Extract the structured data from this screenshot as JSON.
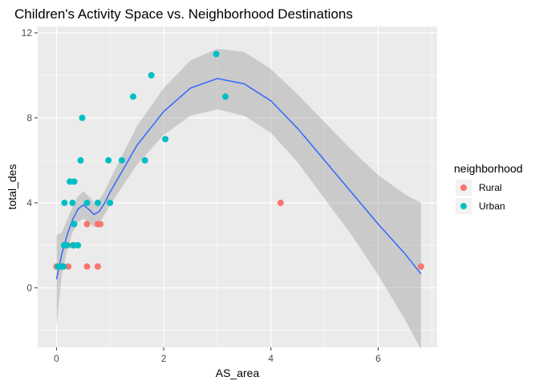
{
  "chart_data": {
    "type": "scatter",
    "title": "Children's Activity Space vs. Neighborhood Destinations",
    "xlabel": "AS_area",
    "ylabel": "total_des",
    "xlim": [
      -0.35,
      7.1
    ],
    "ylim": [
      -2.8,
      12.3
    ],
    "x_ticks": [
      0,
      2,
      4,
      6
    ],
    "y_ticks": [
      0,
      4,
      8,
      12
    ],
    "grid": true,
    "legend": {
      "title": "neighborhood",
      "placement": "right",
      "entries": [
        {
          "label": "Rural",
          "color": "#F8766D"
        },
        {
          "label": "Urban",
          "color": "#00BFC4"
        }
      ]
    },
    "series": [
      {
        "name": "Rural",
        "color": "#F8766D",
        "points": [
          [
            0.0,
            1
          ],
          [
            0.08,
            1
          ],
          [
            0.22,
            1
          ],
          [
            0.57,
            1
          ],
          [
            0.77,
            1
          ],
          [
            0.3,
            2
          ],
          [
            0.57,
            3
          ],
          [
            0.77,
            3
          ],
          [
            0.82,
            3
          ],
          [
            4.18,
            4
          ],
          [
            6.8,
            1
          ]
        ]
      },
      {
        "name": "Urban",
        "color": "#00BFC4",
        "points": [
          [
            0.03,
            1
          ],
          [
            0.1,
            1
          ],
          [
            0.13,
            1
          ],
          [
            0.14,
            2
          ],
          [
            0.2,
            2
          ],
          [
            0.32,
            2
          ],
          [
            0.4,
            2
          ],
          [
            0.33,
            3
          ],
          [
            0.15,
            4
          ],
          [
            0.3,
            4
          ],
          [
            0.57,
            4
          ],
          [
            0.77,
            4
          ],
          [
            1.0,
            4
          ],
          [
            0.25,
            5
          ],
          [
            0.33,
            5
          ],
          [
            0.45,
            6
          ],
          [
            0.97,
            6
          ],
          [
            1.22,
            6
          ],
          [
            1.65,
            6
          ],
          [
            2.03,
            7
          ],
          [
            0.48,
            8
          ],
          [
            1.43,
            9
          ],
          [
            3.15,
            9
          ],
          [
            1.77,
            10
          ],
          [
            2.98,
            11
          ]
        ]
      }
    ],
    "smooth": {
      "color": "#3366FF",
      "band_color": "#999999",
      "x": [
        0.0,
        0.1,
        0.2,
        0.3,
        0.4,
        0.5,
        0.6,
        0.7,
        0.8,
        0.9,
        1.0,
        1.25,
        1.5,
        2.0,
        2.5,
        3.0,
        3.5,
        4.0,
        4.5,
        5.0,
        5.5,
        6.0,
        6.5,
        6.8
      ],
      "fit": [
        0.4,
        1.6,
        2.5,
        3.2,
        3.7,
        3.9,
        3.7,
        3.45,
        3.6,
        4.0,
        4.5,
        5.6,
        6.7,
        8.3,
        9.4,
        9.85,
        9.6,
        8.8,
        7.5,
        6.0,
        4.5,
        3.0,
        1.6,
        0.65
      ],
      "lower": [
        -1.8,
        0.6,
        1.8,
        2.6,
        3.1,
        3.25,
        3.1,
        2.85,
        3.05,
        3.45,
        3.9,
        4.85,
        5.8,
        7.2,
        8.1,
        8.4,
        8.1,
        7.3,
        5.9,
        4.2,
        2.5,
        0.6,
        -1.5,
        -2.9
      ],
      "upper": [
        2.5,
        2.6,
        3.2,
        3.8,
        4.3,
        4.55,
        4.3,
        4.05,
        4.15,
        4.55,
        5.1,
        6.35,
        7.6,
        9.4,
        10.7,
        11.25,
        11.1,
        10.3,
        9.1,
        7.8,
        6.5,
        5.3,
        4.4,
        4.0
      ]
    }
  }
}
